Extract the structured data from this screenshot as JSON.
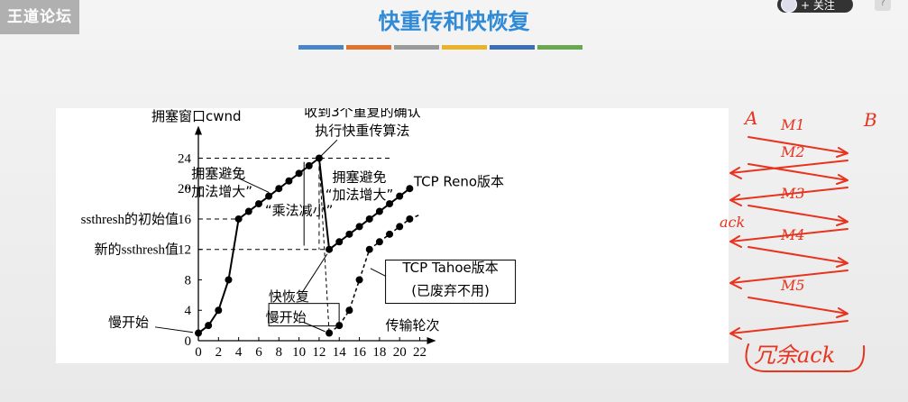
{
  "header": {
    "logo": "王道论坛",
    "title": "快重传和快恢复",
    "follow_label": "+ 关注",
    "help_label": "?",
    "divider_colors": [
      "#4a86c5",
      "#e0732d",
      "#9a9a9a",
      "#eab32c",
      "#3b6fb5",
      "#6aa84f"
    ]
  },
  "chart_data": {
    "type": "line",
    "ylabel": "拥塞窗口cwnd",
    "xlabel": "传输轮次",
    "xlim": [
      0,
      22
    ],
    "ylim": [
      0,
      24
    ],
    "x_ticks": [
      "0",
      "2",
      "4",
      "6",
      "8",
      "10",
      "12",
      "14",
      "16",
      "18",
      "20",
      "22"
    ],
    "y_ticks": [
      "0",
      "4",
      "8",
      "12",
      "16",
      "20",
      "24"
    ],
    "y_special_labels": [
      {
        "value": 16,
        "text": "ssthresh的初始值16"
      },
      {
        "value": 12,
        "text": "新的ssthresh值12"
      }
    ],
    "series": [
      {
        "name": "TCP Reno版本",
        "points": [
          [
            0,
            1
          ],
          [
            1,
            2
          ],
          [
            2,
            4
          ],
          [
            3,
            8
          ],
          [
            4,
            16
          ],
          [
            5,
            17
          ],
          [
            6,
            18
          ],
          [
            7,
            19
          ],
          [
            8,
            20
          ],
          [
            9,
            21
          ],
          [
            10,
            22
          ],
          [
            11,
            23
          ],
          [
            12,
            24
          ],
          [
            13,
            12
          ],
          [
            14,
            13
          ],
          [
            15,
            14
          ],
          [
            16,
            15
          ],
          [
            17,
            16
          ],
          [
            18,
            17
          ],
          [
            19,
            18
          ],
          [
            20,
            19
          ],
          [
            21,
            20
          ]
        ]
      },
      {
        "name": "TCP Tahoe版本\n(已废弃不用)",
        "points": [
          [
            13,
            1
          ],
          [
            14,
            2
          ],
          [
            15,
            4
          ],
          [
            16,
            8
          ],
          [
            17,
            12
          ],
          [
            18,
            13
          ],
          [
            19,
            14
          ],
          [
            20,
            15
          ],
          [
            21,
            16
          ]
        ]
      }
    ],
    "annotations": {
      "slow_start_left": "慢开始",
      "congestion_avoid_1_line1": "拥塞避免",
      "congestion_avoid_1_line2": "“加法增大”",
      "mult_decrease": "“乘法减小”",
      "fast_recover": "快恢复",
      "slow_start_box": "慢开始",
      "fast_retransmit_line1": "收到3个重复的确认",
      "fast_retransmit_line2": "执行快重传算法",
      "congestion_avoid_2_line1": "拥塞避免",
      "congestion_avoid_2_line2": "“加法增大”",
      "reno_label": "TCP Reno版本",
      "tahoe_line1": "TCP Tahoe版本",
      "tahoe_line2": "(已废弃不用)"
    }
  },
  "handwriting": {
    "a": "A",
    "b": "B",
    "m1": "M1",
    "m2": "M2",
    "m3": "M3",
    "m4": "M4",
    "m5": "M5",
    "ack": "ack",
    "bottom": "冗余ack"
  }
}
